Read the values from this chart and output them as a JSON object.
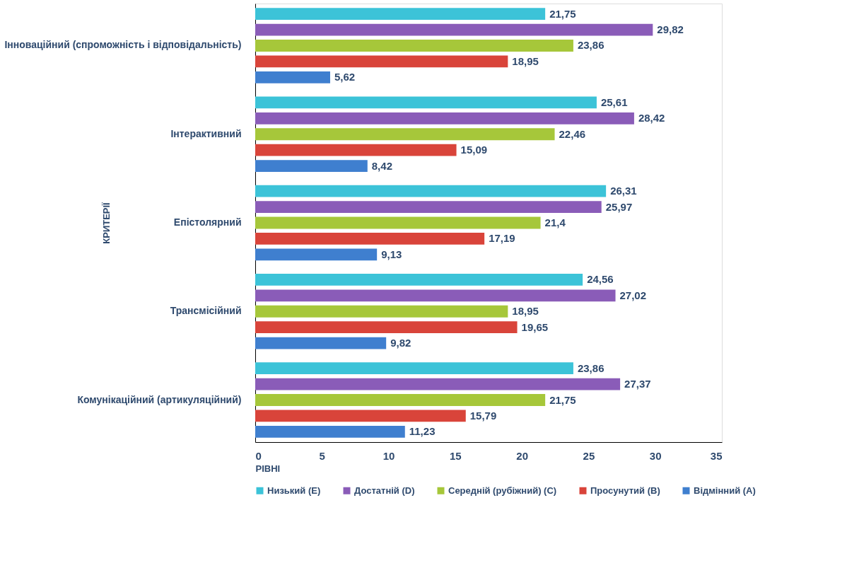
{
  "chart_data": {
    "type": "bar",
    "orientation": "horizontal",
    "xlabel": "РІВНІ",
    "ylabel": "КРИТЕРІЇ",
    "categories": [
      "Інноваційний (спроможність і відповідальність)",
      "Інтерактивний",
      "Епістолярний",
      "Трансмісійний",
      "Комунікаційний (артикуляційний)"
    ],
    "series": [
      {
        "name": "Низький (E)",
        "color": "#3cc3d8",
        "values": [
          21.75,
          25.61,
          26.31,
          24.56,
          23.86
        ],
        "value_labels": [
          "21,75",
          "25,61",
          "26,31",
          "24,56",
          "23,86"
        ]
      },
      {
        "name": "Достатній (D)",
        "color": "#8a5cb8",
        "values": [
          29.82,
          28.42,
          25.97,
          27.02,
          27.37
        ],
        "value_labels": [
          "29,82",
          "28,42",
          "25,97",
          "27,02",
          "27,37"
        ]
      },
      {
        "name": "Середній (рубіжний) (C)",
        "color": "#a6c73a",
        "values": [
          23.86,
          22.46,
          21.4,
          18.95,
          21.75
        ],
        "value_labels": [
          "23,86",
          "22,46",
          "21,4",
          "18,95",
          "21,75"
        ]
      },
      {
        "name": "Просунутий (B)",
        "color": "#d9443a",
        "values": [
          18.95,
          15.09,
          17.19,
          19.65,
          15.79
        ],
        "value_labels": [
          "18,95",
          "15,09",
          "17,19",
          "19,65",
          "15,79"
        ]
      },
      {
        "name": "Відмінний (A)",
        "color": "#3f7fcf",
        "values": [
          5.62,
          8.42,
          9.13,
          9.82,
          11.23
        ],
        "value_labels": [
          "5,62",
          "8,42",
          "9,13",
          "9,82",
          "11,23"
        ]
      }
    ],
    "xlim": [
      0,
      35
    ],
    "xticks": [
      0,
      5,
      10,
      15,
      20,
      25,
      30,
      35
    ],
    "legend": "bottom",
    "grid": false
  }
}
